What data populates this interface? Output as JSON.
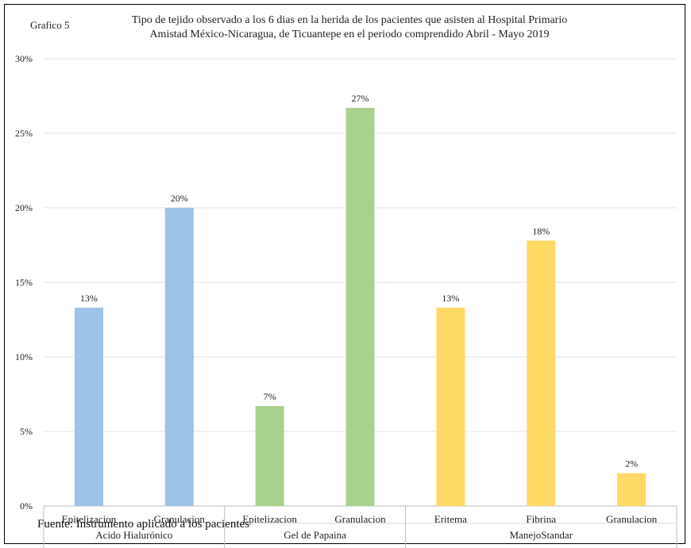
{
  "figure_label": "Grafico 5",
  "title_line1": "Tipo de tejido observado a los 6 dias en la herida de los pacientes que asisten al Hospital Primario",
  "title_line2": "Amistad México-Nicaragua, de Ticuantepe en el periodo comprendido Abril - Mayo 2019",
  "source_note": "Fuente: Instrumento aplicado a los pacientes",
  "colors": {
    "Acido Hialurónico": "#9DC3E6",
    "Gel de Papaina": "#A9D18E",
    "ManejoStandar": "#FFD966"
  },
  "chart_data": {
    "type": "bar",
    "title": "Tipo de tejido observado a los 6 dias en la herida de los pacientes que asisten al Hospital Primario Amistad México-Nicaragua, de Ticuantepe en el periodo comprendido Abril - Mayo 2019",
    "ylim": [
      0,
      30
    ],
    "yticks": [
      "0%",
      "5%",
      "10%",
      "15%",
      "20%",
      "25%",
      "30%"
    ],
    "grid": true,
    "groups": [
      {
        "name": "Acido Hialurónico",
        "bars": [
          {
            "category": "Epitelizacion",
            "value": 13.3,
            "label": "13%"
          },
          {
            "category": "Granulacion",
            "value": 20.0,
            "label": "20%"
          }
        ]
      },
      {
        "name": "Gel de Papaina",
        "bars": [
          {
            "category": "Epitelizacion",
            "value": 6.7,
            "label": "7%"
          },
          {
            "category": "Granulacion",
            "value": 26.7,
            "label": "27%"
          }
        ]
      },
      {
        "name": "ManejoStandar",
        "bars": [
          {
            "category": "Eritema",
            "value": 13.3,
            "label": "13%"
          },
          {
            "category": "Fibrina",
            "value": 17.8,
            "label": "18%"
          },
          {
            "category": "Granulacion",
            "value": 2.2,
            "label": "2%"
          }
        ]
      }
    ]
  }
}
